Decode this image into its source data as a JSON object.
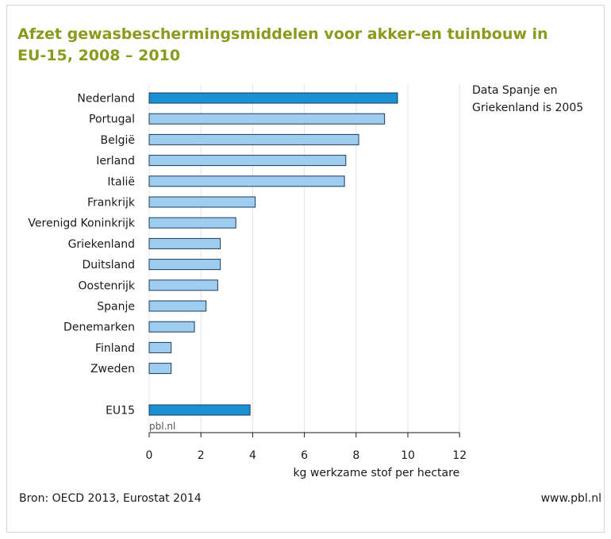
{
  "chart_data": {
    "type": "bar",
    "orientation": "horizontal",
    "title": "Afzet gewasbeschermingsmiddelen voor akker-en tuinbouw in EU-15, 2008 – 2010",
    "xlabel": "kg werkzame stof per hectare",
    "xlim": [
      0,
      12
    ],
    "xticks": [
      0,
      2,
      4,
      6,
      8,
      10,
      12
    ],
    "grid": "vertical",
    "categories": [
      "Nederland",
      "Portugal",
      "België",
      "Ierland",
      "Italië",
      "Frankrijk",
      "Verenigd Koninkrijk",
      "Griekenland",
      "Duitsland",
      "Oostenrijk",
      "Spanje",
      "Denemarken",
      "Finland",
      "Zweden",
      "EU15"
    ],
    "values": [
      9.6,
      9.1,
      8.1,
      7.6,
      7.55,
      4.1,
      3.35,
      2.75,
      2.75,
      2.65,
      2.2,
      1.75,
      0.85,
      0.85,
      3.9
    ],
    "highlight": [
      "Nederland",
      "EU15"
    ],
    "colors": {
      "highlight": "#1a8fd2",
      "default": "#9fcdf0",
      "edge": "#1c3a5a",
      "grid": "#e4e4e4",
      "title": "#8a9a1c"
    },
    "watermark": "pbl.nl"
  },
  "annotation": "Data Spanje en Griekenland is 2005",
  "footer": {
    "source": "Bron: OECD 2013, Eurostat 2014",
    "site": "www.pbl.nl"
  }
}
